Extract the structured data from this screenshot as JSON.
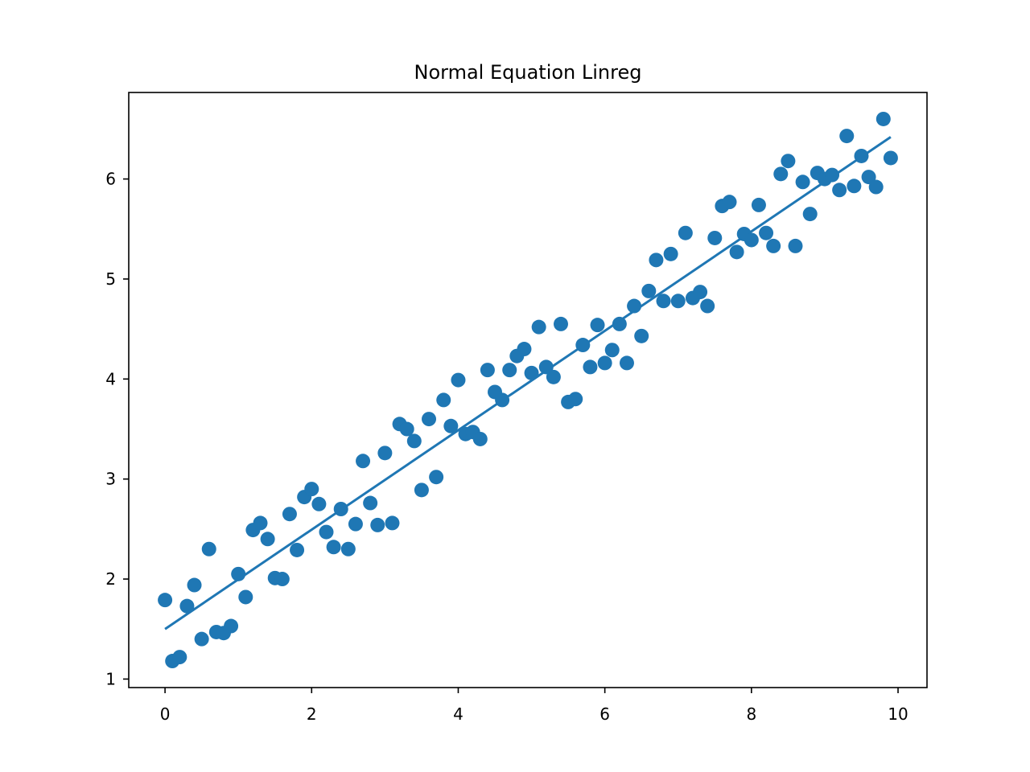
{
  "chart_data": {
    "type": "scatter",
    "title": "Normal Equation Linreg",
    "xlabel": "",
    "ylabel": "",
    "xlim": [
      -0.495,
      10.395
    ],
    "ylim": [
      0.915,
      6.865
    ],
    "xticks": [
      0,
      2,
      4,
      6,
      8,
      10
    ],
    "yticks": [
      1,
      2,
      3,
      4,
      5,
      6
    ],
    "grid": false,
    "legend": "none",
    "color": "#1f77b4",
    "series": [
      {
        "kind": "scatter",
        "x": [
          0.0,
          0.1,
          0.2,
          0.3,
          0.4,
          0.5,
          0.6,
          0.7,
          0.8,
          0.9,
          1.0,
          1.1,
          1.2,
          1.3,
          1.4,
          1.5,
          1.6,
          1.7,
          1.8,
          1.9,
          2.0,
          2.1,
          2.2,
          2.3,
          2.4,
          2.5,
          2.6,
          2.7,
          2.8,
          2.9,
          3.0,
          3.1,
          3.2,
          3.3,
          3.4,
          3.5,
          3.6,
          3.7,
          3.8,
          3.9,
          4.0,
          4.1,
          4.2,
          4.3,
          4.4,
          4.5,
          4.6,
          4.7,
          4.8,
          4.9,
          5.0,
          5.1,
          5.2,
          5.3,
          5.4,
          5.5,
          5.6,
          5.7,
          5.8,
          5.9,
          6.0,
          6.1,
          6.2,
          6.3,
          6.4,
          6.5,
          6.6,
          6.7,
          6.8,
          6.9,
          7.0,
          7.1,
          7.2,
          7.3,
          7.4,
          7.5,
          7.6,
          7.7,
          7.8,
          7.9,
          8.0,
          8.1,
          8.2,
          8.3,
          8.4,
          8.5,
          8.6,
          8.7,
          8.8,
          8.9,
          9.0,
          9.1,
          9.2,
          9.3,
          9.4,
          9.5,
          9.6,
          9.7,
          9.8,
          9.9
        ],
        "y": [
          1.79,
          1.18,
          1.22,
          1.73,
          1.94,
          1.4,
          2.3,
          1.47,
          1.46,
          1.53,
          2.05,
          1.82,
          2.49,
          2.56,
          2.4,
          2.01,
          2.0,
          2.65,
          2.29,
          2.82,
          2.9,
          2.75,
          2.47,
          2.32,
          2.7,
          2.3,
          2.55,
          3.18,
          2.76,
          2.54,
          3.26,
          2.56,
          3.55,
          3.5,
          3.38,
          2.89,
          3.6,
          3.02,
          3.79,
          3.53,
          3.99,
          3.45,
          3.47,
          3.4,
          4.09,
          3.87,
          3.79,
          4.09,
          4.23,
          4.3,
          4.06,
          4.52,
          4.12,
          4.02,
          4.55,
          3.77,
          3.8,
          4.34,
          4.12,
          4.54,
          4.16,
          4.29,
          4.55,
          4.16,
          4.73,
          4.43,
          4.88,
          5.19,
          4.78,
          5.25,
          4.78,
          5.46,
          4.81,
          4.87,
          4.73,
          5.41,
          5.73,
          5.77,
          5.27,
          5.45,
          5.39,
          5.74,
          5.46,
          5.33,
          6.05,
          6.18,
          5.33,
          5.97,
          5.65,
          6.06,
          6.0,
          6.04,
          5.89,
          6.43,
          5.93,
          6.23,
          6.02,
          5.92,
          6.6,
          6.21
        ]
      },
      {
        "kind": "line",
        "x": [
          0.0,
          9.9
        ],
        "y": [
          1.5,
          6.42
        ]
      }
    ]
  }
}
